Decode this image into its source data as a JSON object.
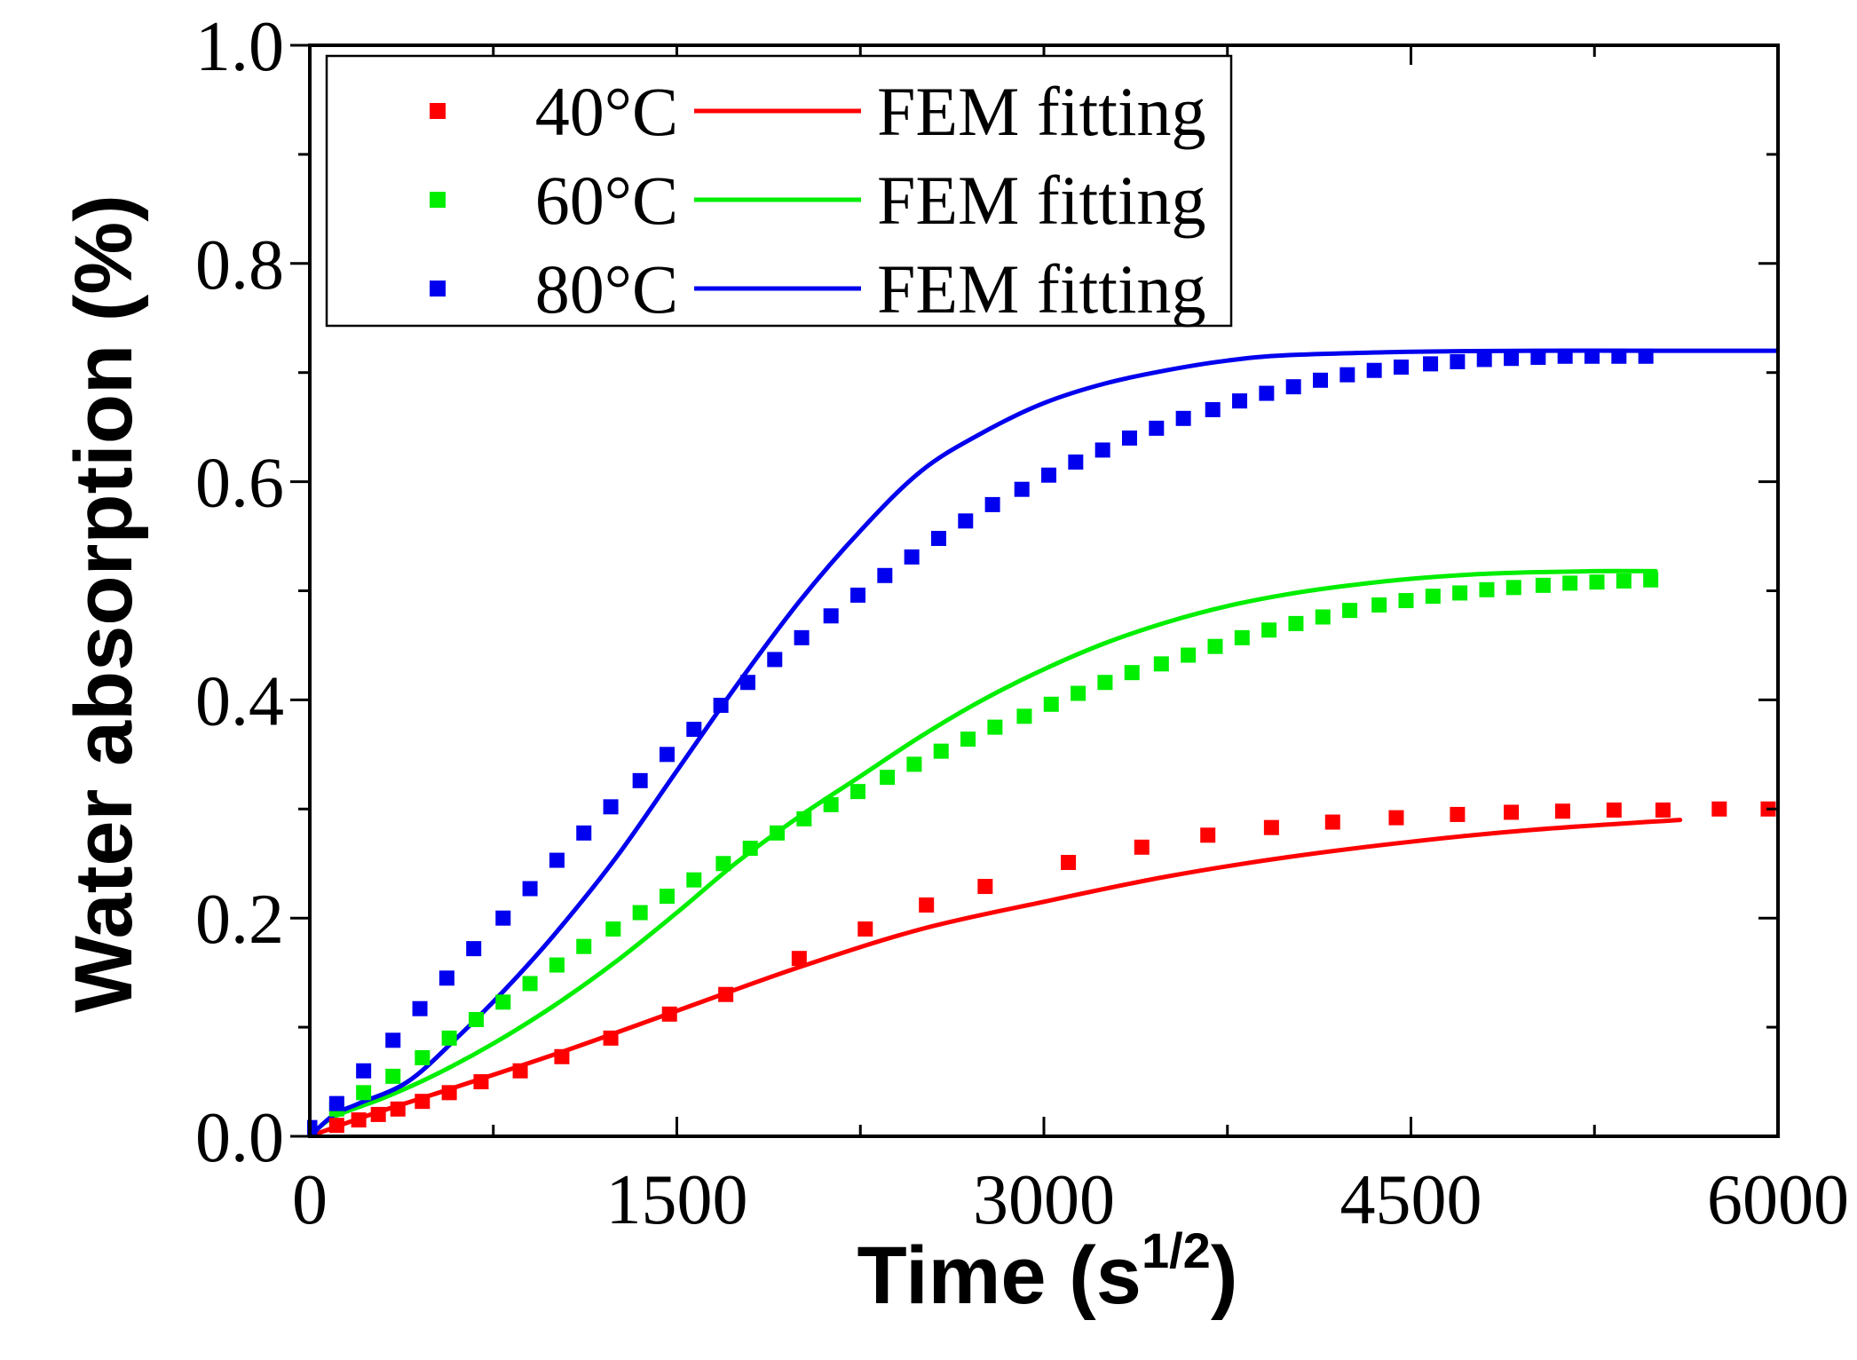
{
  "chart_data": {
    "type": "scatter",
    "xlabel": "Time (s",
    "xlabel_sup": "1/2",
    "xlabel_close": ")",
    "ylabel": "Water absorption (%)",
    "xlim": [
      0,
      6000
    ],
    "ylim": [
      0,
      1.0
    ],
    "x_ticks": [
      0,
      1500,
      3000,
      4500,
      6000
    ],
    "x_tick_labels": [
      "0",
      "1500",
      "3000",
      "4500",
      "6000"
    ],
    "y_ticks": [
      0.0,
      0.2,
      0.4,
      0.6,
      0.8,
      1.0
    ],
    "y_tick_labels": [
      "0.0",
      "0.2",
      "0.4",
      "0.6",
      "0.8",
      "1.0"
    ],
    "grid": false,
    "legend_position": "top-left",
    "series": [
      {
        "name": "40°C",
        "fit_name": "FEM fitting",
        "color": "#ff0000",
        "points": [
          [
            0,
            0.0
          ],
          [
            110,
            0.01
          ],
          [
            200,
            0.015
          ],
          [
            280,
            0.02
          ],
          [
            360,
            0.025
          ],
          [
            460,
            0.032
          ],
          [
            570,
            0.04
          ],
          [
            700,
            0.05
          ],
          [
            860,
            0.06
          ],
          [
            1030,
            0.073
          ],
          [
            1230,
            0.09
          ],
          [
            1470,
            0.112
          ],
          [
            1700,
            0.13
          ],
          [
            2000,
            0.163
          ],
          [
            2270,
            0.19
          ],
          [
            2520,
            0.212
          ],
          [
            2760,
            0.229
          ],
          [
            3100,
            0.251
          ],
          [
            3400,
            0.265
          ],
          [
            3670,
            0.276
          ],
          [
            3930,
            0.283
          ],
          [
            4180,
            0.288
          ],
          [
            4440,
            0.292
          ],
          [
            4690,
            0.295
          ],
          [
            4910,
            0.297
          ],
          [
            5120,
            0.298
          ],
          [
            5330,
            0.299
          ],
          [
            5530,
            0.299
          ],
          [
            5760,
            0.3
          ],
          [
            5960,
            0.3
          ]
        ],
        "fit": [
          [
            0,
            0.0
          ],
          [
            250,
            0.02
          ],
          [
            500,
            0.038
          ],
          [
            1000,
            0.075
          ],
          [
            1500,
            0.115
          ],
          [
            2000,
            0.155
          ],
          [
            2500,
            0.19
          ],
          [
            3000,
            0.215
          ],
          [
            3500,
            0.238
          ],
          [
            4000,
            0.256
          ],
          [
            4500,
            0.27
          ],
          [
            5000,
            0.281
          ],
          [
            5600,
            0.29
          ]
        ]
      },
      {
        "name": "60°C",
        "fit_name": "FEM fitting",
        "color": "#00ee00",
        "points": [
          [
            0,
            0.0
          ],
          [
            110,
            0.025
          ],
          [
            220,
            0.04
          ],
          [
            340,
            0.055
          ],
          [
            460,
            0.072
          ],
          [
            570,
            0.09
          ],
          [
            680,
            0.107
          ],
          [
            790,
            0.123
          ],
          [
            900,
            0.14
          ],
          [
            1010,
            0.157
          ],
          [
            1120,
            0.174
          ],
          [
            1240,
            0.19
          ],
          [
            1350,
            0.205
          ],
          [
            1460,
            0.22
          ],
          [
            1570,
            0.235
          ],
          [
            1690,
            0.25
          ],
          [
            1800,
            0.264
          ],
          [
            1910,
            0.278
          ],
          [
            2020,
            0.291
          ],
          [
            2130,
            0.304
          ],
          [
            2240,
            0.316
          ],
          [
            2360,
            0.329
          ],
          [
            2470,
            0.341
          ],
          [
            2580,
            0.353
          ],
          [
            2690,
            0.364
          ],
          [
            2800,
            0.375
          ],
          [
            2920,
            0.385
          ],
          [
            3030,
            0.396
          ],
          [
            3140,
            0.406
          ],
          [
            3250,
            0.416
          ],
          [
            3360,
            0.425
          ],
          [
            3480,
            0.433
          ],
          [
            3590,
            0.441
          ],
          [
            3700,
            0.449
          ],
          [
            3810,
            0.457
          ],
          [
            3920,
            0.464
          ],
          [
            4030,
            0.47
          ],
          [
            4140,
            0.476
          ],
          [
            4250,
            0.482
          ],
          [
            4370,
            0.487
          ],
          [
            4480,
            0.491
          ],
          [
            4590,
            0.495
          ],
          [
            4700,
            0.498
          ],
          [
            4810,
            0.501
          ],
          [
            4920,
            0.503
          ],
          [
            5040,
            0.505
          ],
          [
            5150,
            0.507
          ],
          [
            5260,
            0.508
          ],
          [
            5370,
            0.509
          ],
          [
            5480,
            0.51
          ]
        ],
        "fit": [
          [
            0,
            0.0
          ],
          [
            100,
            0.018
          ],
          [
            300,
            0.035
          ],
          [
            500,
            0.055
          ],
          [
            750,
            0.085
          ],
          [
            1000,
            0.12
          ],
          [
            1250,
            0.16
          ],
          [
            1500,
            0.205
          ],
          [
            1750,
            0.252
          ],
          [
            2000,
            0.293
          ],
          [
            2250,
            0.33
          ],
          [
            2500,
            0.367
          ],
          [
            2750,
            0.4
          ],
          [
            3000,
            0.428
          ],
          [
            3250,
            0.452
          ],
          [
            3500,
            0.471
          ],
          [
            3750,
            0.486
          ],
          [
            4000,
            0.497
          ],
          [
            4250,
            0.505
          ],
          [
            4500,
            0.511
          ],
          [
            4750,
            0.515
          ],
          [
            5000,
            0.517
          ],
          [
            5250,
            0.518
          ],
          [
            5500,
            0.518
          ]
        ]
      },
      {
        "name": "80°C",
        "fit_name": "FEM fitting",
        "color": "#0000ee",
        "points": [
          [
            0,
            0.008
          ],
          [
            110,
            0.03
          ],
          [
            220,
            0.06
          ],
          [
            340,
            0.088
          ],
          [
            450,
            0.117
          ],
          [
            560,
            0.145
          ],
          [
            670,
            0.172
          ],
          [
            790,
            0.2
          ],
          [
            900,
            0.227
          ],
          [
            1010,
            0.253
          ],
          [
            1120,
            0.278
          ],
          [
            1230,
            0.302
          ],
          [
            1350,
            0.326
          ],
          [
            1460,
            0.35
          ],
          [
            1570,
            0.373
          ],
          [
            1680,
            0.395
          ],
          [
            1790,
            0.416
          ],
          [
            1900,
            0.437
          ],
          [
            2010,
            0.457
          ],
          [
            2130,
            0.477
          ],
          [
            2240,
            0.496
          ],
          [
            2350,
            0.514
          ],
          [
            2460,
            0.531
          ],
          [
            2570,
            0.548
          ],
          [
            2680,
            0.564
          ],
          [
            2790,
            0.579
          ],
          [
            2910,
            0.593
          ],
          [
            3020,
            0.606
          ],
          [
            3130,
            0.618
          ],
          [
            3240,
            0.629
          ],
          [
            3350,
            0.64
          ],
          [
            3460,
            0.649
          ],
          [
            3570,
            0.658
          ],
          [
            3690,
            0.666
          ],
          [
            3800,
            0.674
          ],
          [
            3910,
            0.681
          ],
          [
            4020,
            0.687
          ],
          [
            4130,
            0.693
          ],
          [
            4240,
            0.698
          ],
          [
            4350,
            0.702
          ],
          [
            4460,
            0.705
          ],
          [
            4580,
            0.708
          ],
          [
            4690,
            0.71
          ],
          [
            4800,
            0.712
          ],
          [
            4910,
            0.713
          ],
          [
            5020,
            0.714
          ],
          [
            5130,
            0.715
          ],
          [
            5240,
            0.715
          ],
          [
            5350,
            0.715
          ],
          [
            5460,
            0.715
          ]
        ],
        "fit": [
          [
            0,
            0.0
          ],
          [
            100,
            0.02
          ],
          [
            200,
            0.03
          ],
          [
            400,
            0.05
          ],
          [
            600,
            0.09
          ],
          [
            800,
            0.135
          ],
          [
            1000,
            0.185
          ],
          [
            1250,
            0.255
          ],
          [
            1500,
            0.335
          ],
          [
            1750,
            0.415
          ],
          [
            2000,
            0.49
          ],
          [
            2250,
            0.555
          ],
          [
            2500,
            0.61
          ],
          [
            2750,
            0.645
          ],
          [
            3000,
            0.672
          ],
          [
            3250,
            0.69
          ],
          [
            3500,
            0.702
          ],
          [
            3750,
            0.711
          ],
          [
            4000,
            0.716
          ],
          [
            4500,
            0.719
          ],
          [
            5000,
            0.72
          ],
          [
            5500,
            0.72
          ],
          [
            6000,
            0.72
          ]
        ]
      }
    ]
  }
}
